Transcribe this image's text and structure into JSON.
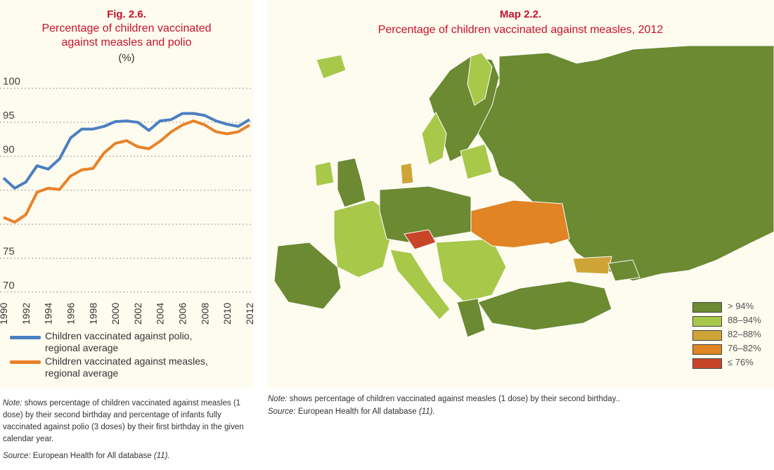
{
  "figure": {
    "number": "Fig. 2.6.",
    "title_line1": "Percentage of children vaccinated",
    "title_line2": "against measles and polio",
    "unit": "(%)"
  },
  "chart_data": {
    "type": "line",
    "title": "Percentage of children vaccinated against measles and polio",
    "ylabel": "(%)",
    "xlabel": "",
    "ylim": [
      70,
      100
    ],
    "yticks": [
      100,
      95,
      90,
      85,
      80,
      75,
      70
    ],
    "ytick_labels": [
      "100",
      "95",
      "90",
      "",
      "",
      "75",
      "70"
    ],
    "x": [
      1990,
      1991,
      1992,
      1993,
      1994,
      1995,
      1996,
      1997,
      1998,
      1999,
      2000,
      2001,
      2002,
      2003,
      2004,
      2005,
      2006,
      2007,
      2008,
      2009,
      2010,
      2011,
      2012
    ],
    "xtick_labels": [
      "1990",
      "1992",
      "1994",
      "1996",
      "1998",
      "2000",
      "2002",
      "2004",
      "2006",
      "2008",
      "2010",
      "2012"
    ],
    "grid": true,
    "legend_placement": "bottom",
    "series": [
      {
        "name": "Children vaccinated against polio, regional average",
        "color": "#4a7fc1",
        "values": [
          86.8,
          85.3,
          86.2,
          88.6,
          88.1,
          89.6,
          92.7,
          94.0,
          94.0,
          94.4,
          95.1,
          95.2,
          95.0,
          93.8,
          95.2,
          95.4,
          96.3,
          96.3,
          96.0,
          95.2,
          94.7,
          94.4,
          95.4
        ]
      },
      {
        "name": "Children vaccinated against measles, regional average",
        "color": "#e8822a",
        "values": [
          81.0,
          80.3,
          81.4,
          84.7,
          85.3,
          85.1,
          87.1,
          88.0,
          88.2,
          90.5,
          91.9,
          92.3,
          91.4,
          91.1,
          92.2,
          93.6,
          94.6,
          95.2,
          94.6,
          93.6,
          93.3,
          93.6,
          94.6
        ]
      }
    ]
  },
  "legend": {
    "polio_l1": "Children vaccinated against polio,",
    "polio_l2": "regional average",
    "measles_l1": "Children vaccinated against measles,",
    "measles_l2": "regional average"
  },
  "left_note": {
    "label": "Note:",
    "text": " shows percentage of children vaccinated against measles (1 dose) by their second birthday and percentage of infants fully vaccinated against polio (3 doses) by their first birthday in the given calendar year.",
    "source_label": "Source:",
    "source": " European Health for All database ",
    "ref": "(11)."
  },
  "map": {
    "number": "Map 2.2.",
    "title": "Percentage of children vaccinated against measles, 2012",
    "legend": [
      {
        "label": "> 94%",
        "color": "#6b8a32"
      },
      {
        "label": "88–94%",
        "color": "#a8c84a"
      },
      {
        "label": "82–88%",
        "color": "#cfa437"
      },
      {
        "label": "76–82%",
        "color": "#e08424"
      },
      {
        "label": "≤ 76%",
        "color": "#c8452a"
      }
    ]
  },
  "right_note": {
    "label": "Note:",
    "text": " shows percentage of children vaccinated against measles (1 dose) by their second birthday..",
    "source_label": "Source:",
    "source": " European Health for All database ",
    "ref": "(11)."
  }
}
